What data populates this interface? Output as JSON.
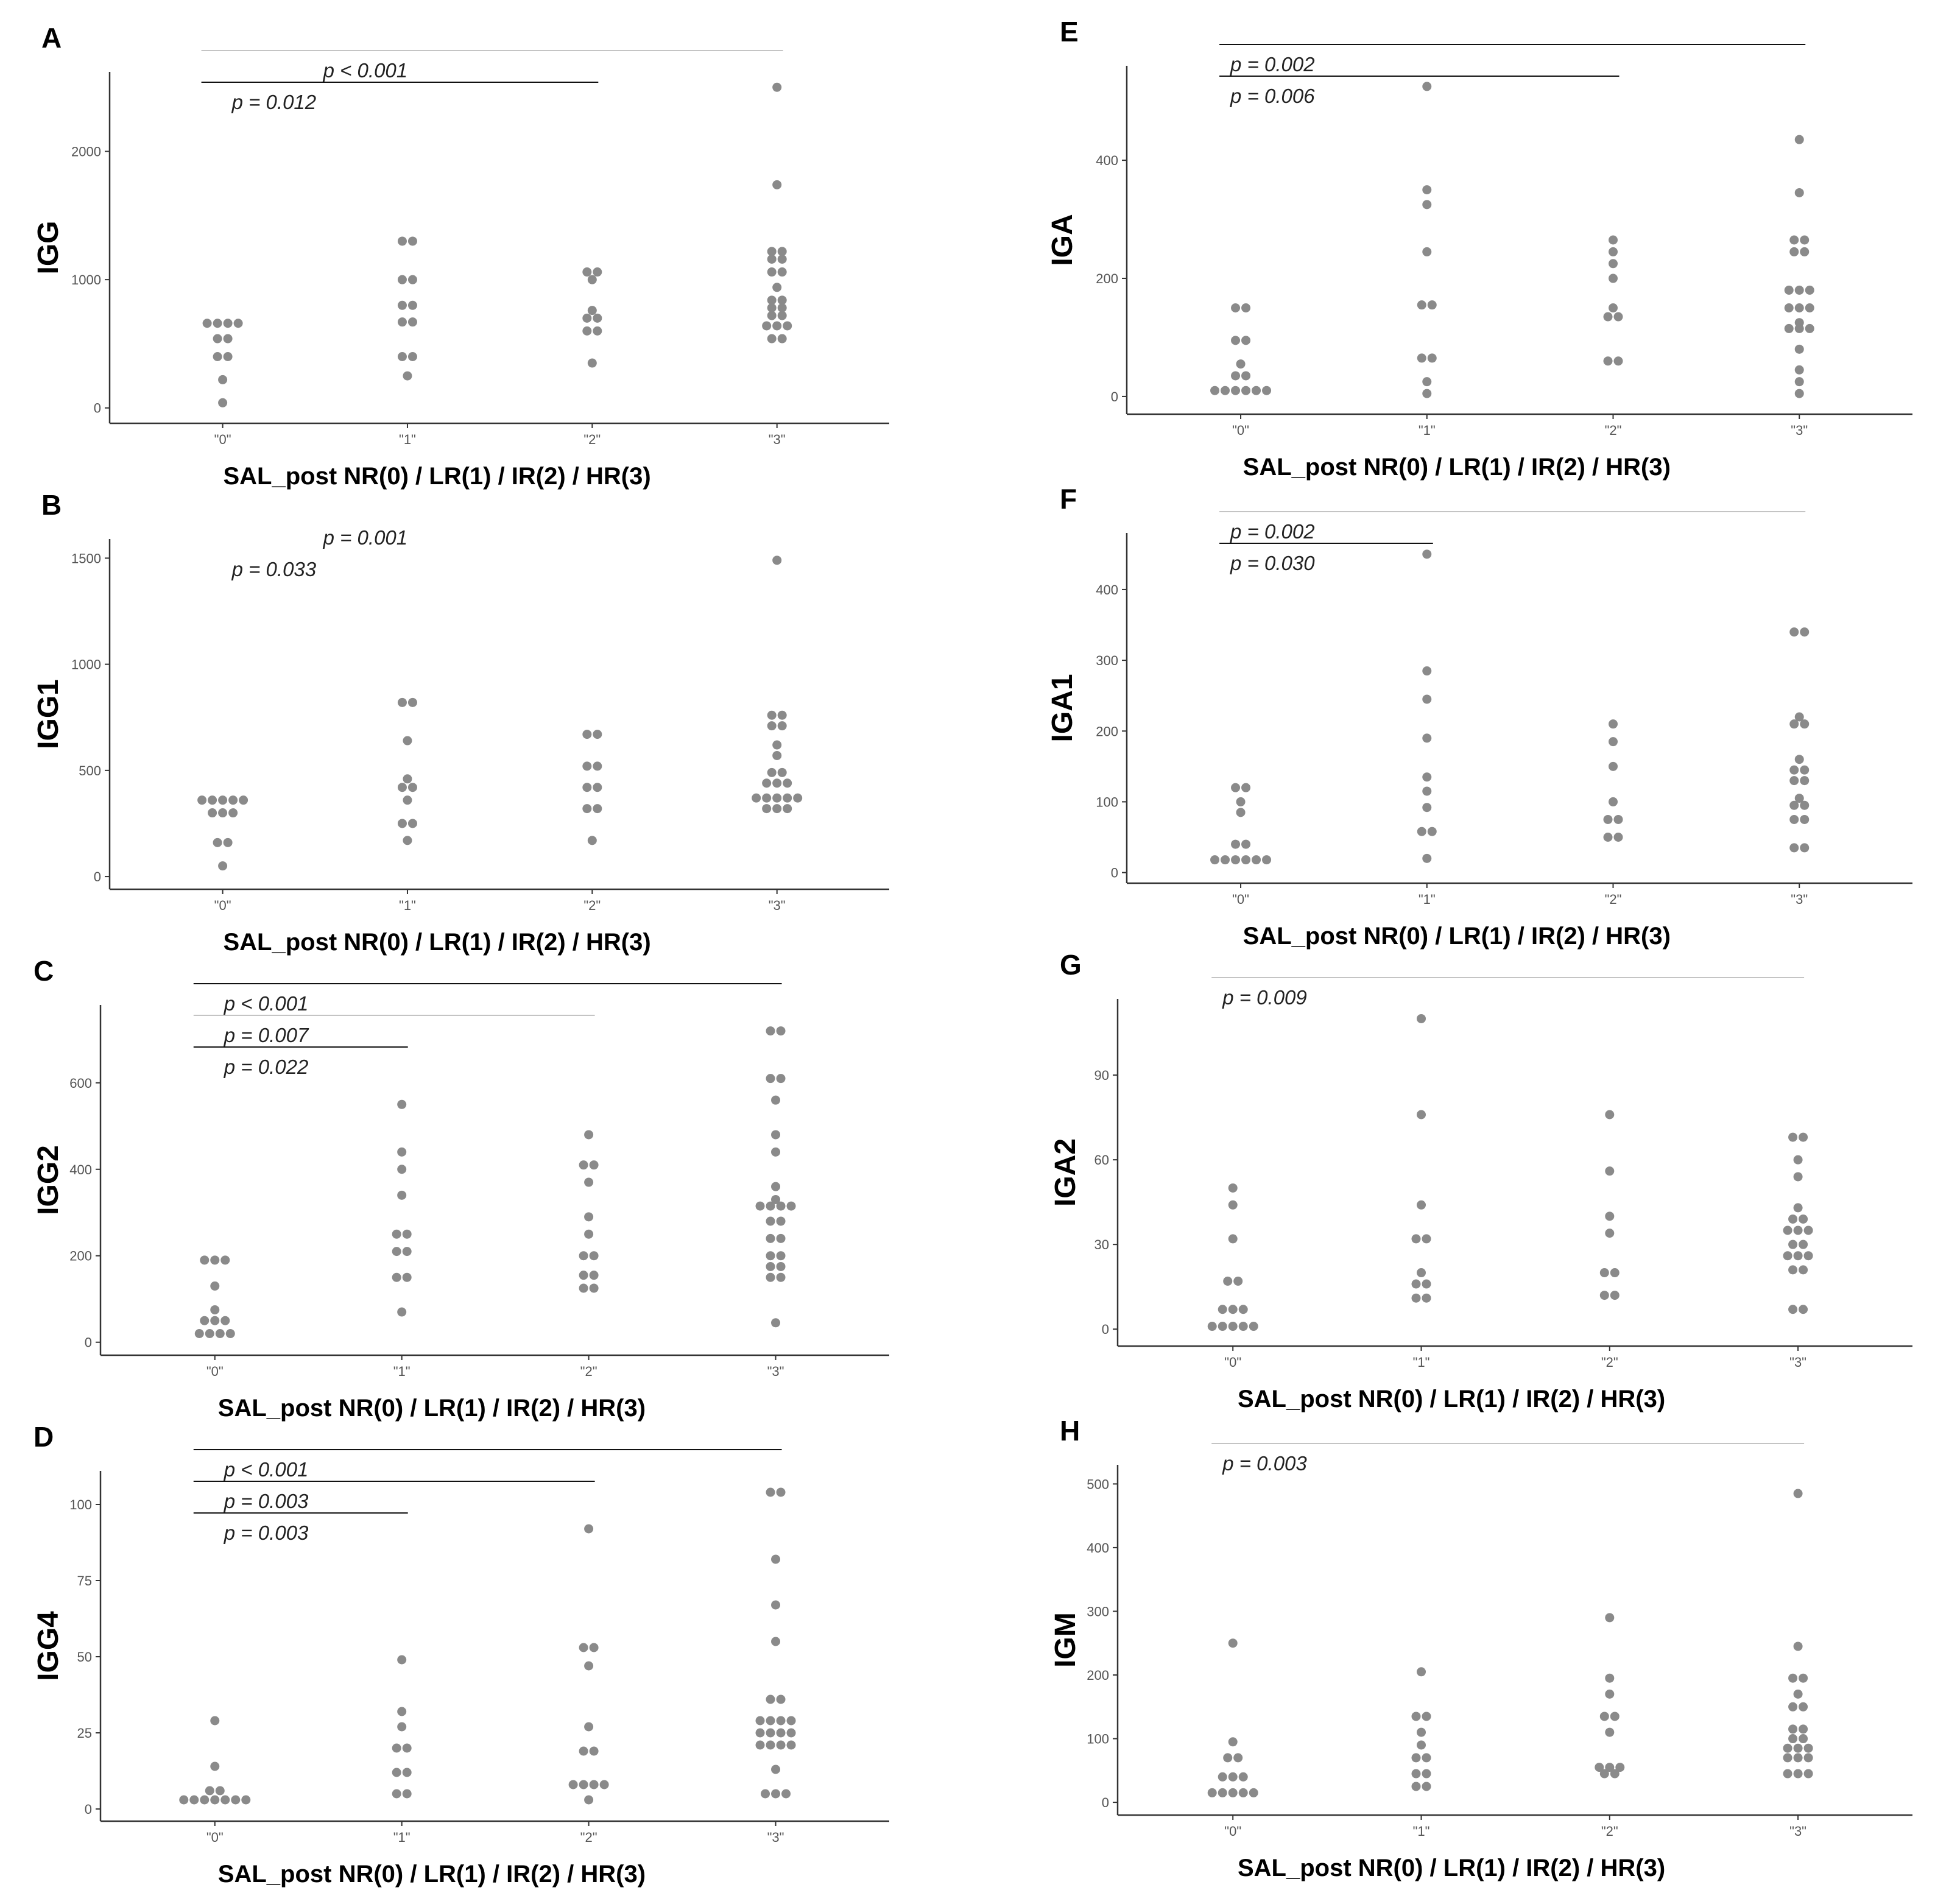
{
  "chart_data": [
    {
      "type": "scatter",
      "panel": "A",
      "ylabel": "IGG",
      "xlabel": "SAL_post NR(0) / LR(1) / IR(2) / HR(3)",
      "categories": [
        "\"0\"",
        "\"1\"",
        "\"2\"",
        "\"3\""
      ],
      "yticks": [
        0,
        1000,
        2000
      ],
      "ylim": [
        -120,
        2620
      ],
      "values": [
        [
          660,
          660,
          660,
          660,
          540,
          540,
          400,
          400,
          220,
          40
        ],
        [
          1300,
          1300,
          1000,
          1000,
          800,
          800,
          670,
          670,
          400,
          400,
          250
        ],
        [
          1060,
          1060,
          1000,
          760,
          700,
          700,
          600,
          600,
          350
        ],
        [
          2500,
          1740,
          1220,
          1220,
          1160,
          1160,
          1060,
          1060,
          940,
          840,
          840,
          780,
          780,
          720,
          720,
          640,
          640,
          640,
          540,
          540
        ]
      ],
      "annotations": [
        {
          "text": "p < 0.001",
          "from": 0,
          "to": 3,
          "shade": "light"
        },
        {
          "text": "p = 0.012",
          "from": 0,
          "to": 2,
          "shade": "dark"
        }
      ]
    },
    {
      "type": "scatter",
      "panel": "B",
      "ylabel": "IGG1",
      "xlabel": "SAL_post NR(0) / LR(1) / IR(2) / HR(3)",
      "categories": [
        "\"0\"",
        "\"1\"",
        "\"2\"",
        "\"3\""
      ],
      "yticks": [
        0,
        500,
        1000,
        1500
      ],
      "ylim": [
        -60,
        1590
      ],
      "values": [
        [
          360,
          360,
          360,
          360,
          360,
          300,
          300,
          300,
          160,
          160,
          50
        ],
        [
          820,
          820,
          640,
          460,
          420,
          420,
          360,
          250,
          250,
          170
        ],
        [
          670,
          670,
          520,
          520,
          420,
          420,
          320,
          320,
          170
        ],
        [
          1490,
          760,
          760,
          710,
          710,
          620,
          570,
          490,
          490,
          440,
          440,
          440,
          370,
          370,
          370,
          370,
          370,
          320,
          320,
          320
        ]
      ],
      "annotations": [
        {
          "text": "p = 0.001",
          "from": 0,
          "to": 3,
          "shade": "none"
        },
        {
          "text": "p = 0.033",
          "from": 0,
          "to": 2,
          "shade": "none"
        }
      ]
    },
    {
      "type": "scatter",
      "panel": "C",
      "ylabel": "IGG2",
      "xlabel": "SAL_post NR(0) / LR(1) / IR(2) / HR(3)",
      "categories": [
        "\"0\"",
        "\"1\"",
        "\"2\"",
        "\"3\""
      ],
      "yticks": [
        0,
        200,
        400,
        600
      ],
      "ylim": [
        -30,
        780
      ],
      "values": [
        [
          190,
          190,
          190,
          130,
          75,
          50,
          50,
          50,
          20,
          20,
          20,
          20
        ],
        [
          550,
          440,
          400,
          340,
          250,
          250,
          210,
          210,
          150,
          150,
          70
        ],
        [
          480,
          410,
          410,
          370,
          290,
          250,
          200,
          200,
          155,
          155,
          125,
          125
        ],
        [
          720,
          720,
          610,
          610,
          560,
          480,
          440,
          360,
          330,
          315,
          315,
          315,
          315,
          280,
          280,
          240,
          240,
          200,
          200,
          175,
          175,
          150,
          150,
          45
        ]
      ],
      "annotations": [
        {
          "text": "p < 0.001",
          "from": 0,
          "to": 3,
          "shade": "dark"
        },
        {
          "text": "p = 0.007",
          "from": 0,
          "to": 2,
          "shade": "light"
        },
        {
          "text": "p = 0.022",
          "from": 0,
          "to": 1,
          "shade": "dark"
        }
      ]
    },
    {
      "type": "scatter",
      "panel": "D",
      "ylabel": "IGG4",
      "xlabel": "SAL_post NR(0) / LR(1) / IR(2) / HR(3)",
      "categories": [
        "\"0\"",
        "\"1\"",
        "\"2\"",
        "\"3\""
      ],
      "yticks": [
        0,
        25,
        50,
        75,
        100
      ],
      "ylim": [
        -4,
        111
      ],
      "values": [
        [
          29,
          14,
          6,
          6,
          3,
          3,
          3,
          3,
          3,
          3,
          3
        ],
        [
          49,
          32,
          27,
          20,
          20,
          12,
          12,
          5,
          5
        ],
        [
          92,
          53,
          53,
          47,
          27,
          19,
          19,
          8,
          8,
          8,
          8,
          3
        ],
        [
          104,
          104,
          82,
          67,
          55,
          36,
          36,
          29,
          29,
          29,
          29,
          25,
          25,
          25,
          25,
          21,
          21,
          21,
          21,
          13,
          5,
          5,
          5
        ]
      ],
      "annotations": [
        {
          "text": "p < 0.001",
          "from": 0,
          "to": 3,
          "shade": "dark"
        },
        {
          "text": "p = 0.003",
          "from": 0,
          "to": 2,
          "shade": "dark"
        },
        {
          "text": "p = 0.003",
          "from": 0,
          "to": 1,
          "shade": "dark"
        }
      ]
    },
    {
      "type": "scatter",
      "panel": "E",
      "ylabel": "IGA",
      "xlabel": "SAL_post NR(0) / LR(1) / IR(2) / HR(3)",
      "categories": [
        "\"0\"",
        "\"1\"",
        "\"2\"",
        "\"3\""
      ],
      "yticks": [
        0,
        200,
        400
      ],
      "ylim": [
        -30,
        560
      ],
      "values": [
        [
          150,
          150,
          95,
          95,
          55,
          35,
          35,
          10,
          10,
          10,
          10,
          10,
          10
        ],
        [
          525,
          350,
          325,
          245,
          155,
          155,
          65,
          65,
          25,
          5
        ],
        [
          265,
          245,
          225,
          200,
          150,
          135,
          135,
          60,
          60
        ],
        [
          435,
          345,
          265,
          265,
          245,
          245,
          180,
          180,
          180,
          150,
          150,
          150,
          125,
          115,
          115,
          115,
          80,
          45,
          25,
          5
        ]
      ],
      "annotations": [
        {
          "text": "p = 0.002",
          "from": 0,
          "to": 3,
          "shade": "dark"
        },
        {
          "text": "p = 0.006",
          "from": 0,
          "to": 2,
          "shade": "dark"
        }
      ]
    },
    {
      "type": "scatter",
      "panel": "F",
      "ylabel": "IGA1",
      "xlabel": "SAL_post NR(0) / LR(1) / IR(2) / HR(3)",
      "categories": [
        "\"0\"",
        "\"1\"",
        "\"2\"",
        "\"3\""
      ],
      "yticks": [
        0,
        100,
        200,
        300,
        400
      ],
      "ylim": [
        -15,
        480
      ],
      "values": [
        [
          120,
          120,
          100,
          85,
          40,
          40,
          18,
          18,
          18,
          18,
          18,
          18
        ],
        [
          450,
          285,
          245,
          190,
          135,
          115,
          92,
          58,
          58,
          20
        ],
        [
          210,
          185,
          150,
          100,
          75,
          75,
          50,
          50
        ],
        [
          340,
          340,
          220,
          210,
          210,
          160,
          145,
          145,
          130,
          130,
          105,
          95,
          95,
          75,
          75,
          35,
          35
        ]
      ],
      "annotations": [
        {
          "text": "p = 0.002",
          "from": 0,
          "to": 3,
          "shade": "light"
        },
        {
          "text": "p = 0.030",
          "from": 0,
          "to": 1,
          "shade": "dark"
        }
      ]
    },
    {
      "type": "scatter",
      "panel": "G",
      "ylabel": "IGA2",
      "xlabel": "SAL_post NR(0) / LR(1) / IR(2) / HR(3)",
      "categories": [
        "\"0\"",
        "\"1\"",
        "\"2\"",
        "\"3\""
      ],
      "yticks": [
        0,
        30,
        60,
        90
      ],
      "ylim": [
        -6,
        117
      ],
      "values": [
        [
          50,
          44,
          32,
          17,
          17,
          7,
          7,
          7,
          1,
          1,
          1,
          1,
          1
        ],
        [
          110,
          76,
          44,
          32,
          32,
          20,
          16,
          16,
          11,
          11
        ],
        [
          76,
          56,
          40,
          34,
          20,
          20,
          12,
          12
        ],
        [
          68,
          68,
          60,
          54,
          43,
          39,
          39,
          35,
          35,
          35,
          30,
          30,
          26,
          26,
          26,
          21,
          21,
          7,
          7
        ]
      ],
      "annotations": [
        {
          "text": "p = 0.009",
          "from": 0,
          "to": 3,
          "shade": "light"
        }
      ]
    },
    {
      "type": "scatter",
      "panel": "H",
      "ylabel": "IGM",
      "xlabel": "SAL_post NR(0) / LR(1) / IR(2) / HR(3)",
      "categories": [
        "\"0\"",
        "\"1\"",
        "\"2\"",
        "\"3\""
      ],
      "yticks": [
        0,
        100,
        200,
        300,
        400,
        500
      ],
      "ylim": [
        -20,
        530
      ],
      "values": [
        [
          250,
          95,
          70,
          70,
          40,
          40,
          40,
          15,
          15,
          15,
          15,
          15
        ],
        [
          205,
          135,
          135,
          110,
          90,
          70,
          70,
          45,
          45,
          25,
          25
        ],
        [
          290,
          195,
          170,
          135,
          135,
          110,
          55,
          55,
          55,
          45,
          45
        ],
        [
          485,
          245,
          195,
          195,
          170,
          150,
          150,
          115,
          115,
          100,
          100,
          85,
          85,
          85,
          70,
          70,
          70,
          45,
          45,
          45
        ]
      ],
      "annotations": [
        {
          "text": "p = 0.003",
          "from": 0,
          "to": 3,
          "shade": "light"
        }
      ]
    }
  ]
}
